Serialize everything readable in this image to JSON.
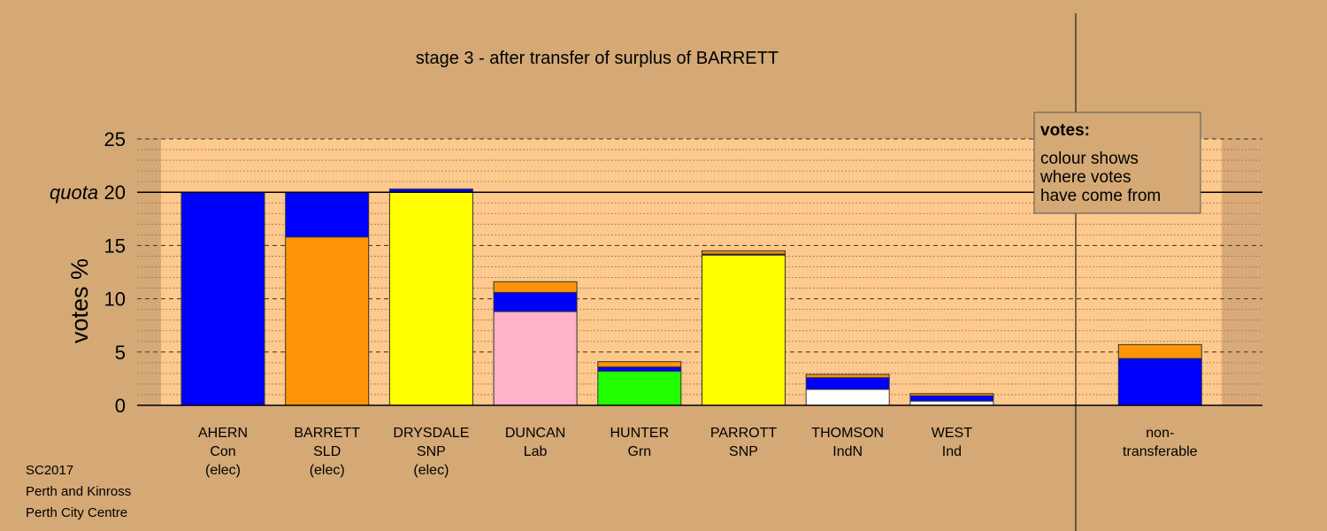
{
  "chart_data": {
    "type": "bar",
    "stacked": true,
    "title": "stage 3 - after transfer of surplus of BARRETT",
    "ylabel": "votes %",
    "ylim": [
      0,
      25
    ],
    "yticks": [
      0,
      5,
      10,
      15,
      20,
      25
    ],
    "ytick_labels": [
      "0",
      "5",
      "10",
      "15",
      "20",
      "25"
    ],
    "quota": {
      "label": "quota",
      "value": 20
    },
    "grid": true,
    "legend_box": {
      "title": "votes:",
      "lines": [
        "colour shows",
        "where votes",
        "have come from"
      ],
      "position": "top-right"
    },
    "colors": {
      "background": "#d4a976",
      "plot_area": "#fdc98c",
      "Con": "#0000ff",
      "SLD": "#ff9408",
      "SNP": "#ffff00",
      "Lab": "#ffb2c8",
      "Grn": "#22ff00",
      "Ind": "#ffffff"
    },
    "categories": [
      {
        "name": "AHERN",
        "party": "Con",
        "status": "(elec)",
        "segments": [
          {
            "source": "Con",
            "value": 20.0
          }
        ]
      },
      {
        "name": "BARRETT",
        "party": "SLD",
        "status": "(elec)",
        "segments": [
          {
            "source": "SLD",
            "value": 15.8
          },
          {
            "source": "Con",
            "value": 4.2
          }
        ]
      },
      {
        "name": "DRYSDALE",
        "party": "SNP",
        "status": "(elec)",
        "segments": [
          {
            "source": "SNP",
            "value": 20.0
          },
          {
            "source": "Con",
            "value": 0.3
          }
        ]
      },
      {
        "name": "DUNCAN",
        "party": "Lab",
        "status": "",
        "segments": [
          {
            "source": "Lab",
            "value": 8.8
          },
          {
            "source": "Con",
            "value": 1.8
          },
          {
            "source": "SLD",
            "value": 1.0
          }
        ]
      },
      {
        "name": "HUNTER",
        "party": "Grn",
        "status": "",
        "segments": [
          {
            "source": "Grn",
            "value": 3.2
          },
          {
            "source": "Con",
            "value": 0.4
          },
          {
            "source": "SLD",
            "value": 0.5
          }
        ]
      },
      {
        "name": "PARROTT",
        "party": "SNP",
        "status": "",
        "segments": [
          {
            "source": "SNP",
            "value": 14.1
          },
          {
            "source": "Con",
            "value": 0.1
          },
          {
            "source": "SLD",
            "value": 0.3
          }
        ]
      },
      {
        "name": "THOMSON",
        "party": "IndN",
        "status": "",
        "segments": [
          {
            "source": "Ind",
            "value": 1.5
          },
          {
            "source": "Con",
            "value": 1.1
          },
          {
            "source": "SLD",
            "value": 0.3
          }
        ]
      },
      {
        "name": "WEST",
        "party": "Ind",
        "status": "",
        "segments": [
          {
            "source": "Ind",
            "value": 0.4
          },
          {
            "source": "Con",
            "value": 0.5
          },
          {
            "source": "SLD",
            "value": 0.2
          }
        ]
      },
      {
        "name": "",
        "party": "",
        "status": "",
        "segments": []
      },
      {
        "name": "non-",
        "party": "transferable",
        "status": "",
        "segments": [
          {
            "source": "Con",
            "value": 4.4
          },
          {
            "source": "SLD",
            "value": 1.3
          }
        ]
      }
    ]
  },
  "footer": {
    "line1": "SC2017",
    "line2": "Perth and Kinross",
    "line3": "Perth City Centre"
  }
}
